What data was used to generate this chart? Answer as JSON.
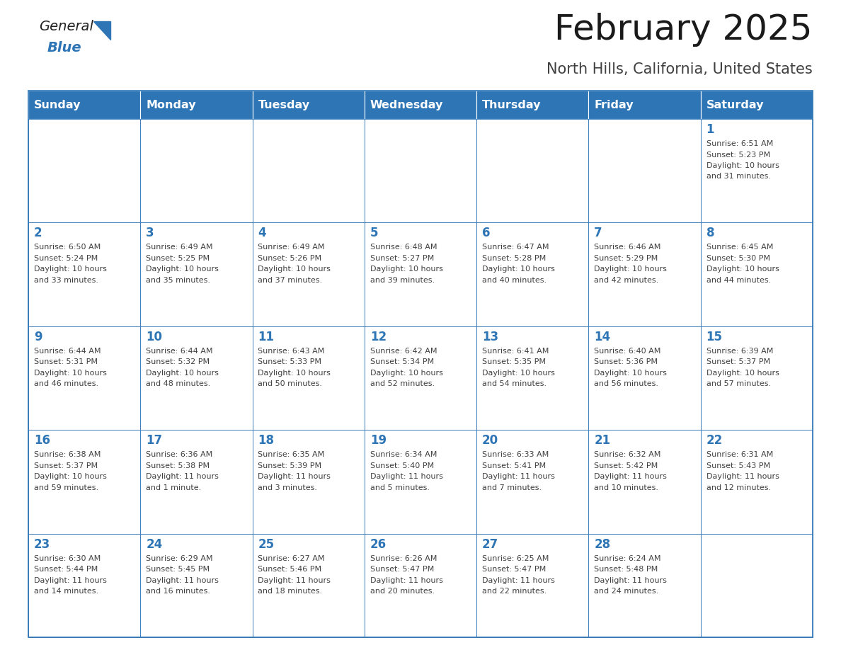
{
  "title": "February 2025",
  "subtitle": "North Hills, California, United States",
  "days_of_week": [
    "Sunday",
    "Monday",
    "Tuesday",
    "Wednesday",
    "Thursday",
    "Friday",
    "Saturday"
  ],
  "header_bg": "#2E75B6",
  "header_text": "#FFFFFF",
  "cell_bg": "#FFFFFF",
  "border_color": "#2E75B6",
  "day_number_color": "#2E75B6",
  "info_text_color": "#404040",
  "title_color": "#1a1a1a",
  "subtitle_color": "#404040",
  "calendar": [
    [
      null,
      null,
      null,
      null,
      null,
      null,
      {
        "day": 1,
        "sunrise": "6:51 AM",
        "sunset": "5:23 PM",
        "daylight_line1": "Daylight: 10 hours",
        "daylight_line2": "and 31 minutes."
      }
    ],
    [
      {
        "day": 2,
        "sunrise": "6:50 AM",
        "sunset": "5:24 PM",
        "daylight_line1": "Daylight: 10 hours",
        "daylight_line2": "and 33 minutes."
      },
      {
        "day": 3,
        "sunrise": "6:49 AM",
        "sunset": "5:25 PM",
        "daylight_line1": "Daylight: 10 hours",
        "daylight_line2": "and 35 minutes."
      },
      {
        "day": 4,
        "sunrise": "6:49 AM",
        "sunset": "5:26 PM",
        "daylight_line1": "Daylight: 10 hours",
        "daylight_line2": "and 37 minutes."
      },
      {
        "day": 5,
        "sunrise": "6:48 AM",
        "sunset": "5:27 PM",
        "daylight_line1": "Daylight: 10 hours",
        "daylight_line2": "and 39 minutes."
      },
      {
        "day": 6,
        "sunrise": "6:47 AM",
        "sunset": "5:28 PM",
        "daylight_line1": "Daylight: 10 hours",
        "daylight_line2": "and 40 minutes."
      },
      {
        "day": 7,
        "sunrise": "6:46 AM",
        "sunset": "5:29 PM",
        "daylight_line1": "Daylight: 10 hours",
        "daylight_line2": "and 42 minutes."
      },
      {
        "day": 8,
        "sunrise": "6:45 AM",
        "sunset": "5:30 PM",
        "daylight_line1": "Daylight: 10 hours",
        "daylight_line2": "and 44 minutes."
      }
    ],
    [
      {
        "day": 9,
        "sunrise": "6:44 AM",
        "sunset": "5:31 PM",
        "daylight_line1": "Daylight: 10 hours",
        "daylight_line2": "and 46 minutes."
      },
      {
        "day": 10,
        "sunrise": "6:44 AM",
        "sunset": "5:32 PM",
        "daylight_line1": "Daylight: 10 hours",
        "daylight_line2": "and 48 minutes."
      },
      {
        "day": 11,
        "sunrise": "6:43 AM",
        "sunset": "5:33 PM",
        "daylight_line1": "Daylight: 10 hours",
        "daylight_line2": "and 50 minutes."
      },
      {
        "day": 12,
        "sunrise": "6:42 AM",
        "sunset": "5:34 PM",
        "daylight_line1": "Daylight: 10 hours",
        "daylight_line2": "and 52 minutes."
      },
      {
        "day": 13,
        "sunrise": "6:41 AM",
        "sunset": "5:35 PM",
        "daylight_line1": "Daylight: 10 hours",
        "daylight_line2": "and 54 minutes."
      },
      {
        "day": 14,
        "sunrise": "6:40 AM",
        "sunset": "5:36 PM",
        "daylight_line1": "Daylight: 10 hours",
        "daylight_line2": "and 56 minutes."
      },
      {
        "day": 15,
        "sunrise": "6:39 AM",
        "sunset": "5:37 PM",
        "daylight_line1": "Daylight: 10 hours",
        "daylight_line2": "and 57 minutes."
      }
    ],
    [
      {
        "day": 16,
        "sunrise": "6:38 AM",
        "sunset": "5:37 PM",
        "daylight_line1": "Daylight: 10 hours",
        "daylight_line2": "and 59 minutes."
      },
      {
        "day": 17,
        "sunrise": "6:36 AM",
        "sunset": "5:38 PM",
        "daylight_line1": "Daylight: 11 hours",
        "daylight_line2": "and 1 minute."
      },
      {
        "day": 18,
        "sunrise": "6:35 AM",
        "sunset": "5:39 PM",
        "daylight_line1": "Daylight: 11 hours",
        "daylight_line2": "and 3 minutes."
      },
      {
        "day": 19,
        "sunrise": "6:34 AM",
        "sunset": "5:40 PM",
        "daylight_line1": "Daylight: 11 hours",
        "daylight_line2": "and 5 minutes."
      },
      {
        "day": 20,
        "sunrise": "6:33 AM",
        "sunset": "5:41 PM",
        "daylight_line1": "Daylight: 11 hours",
        "daylight_line2": "and 7 minutes."
      },
      {
        "day": 21,
        "sunrise": "6:32 AM",
        "sunset": "5:42 PM",
        "daylight_line1": "Daylight: 11 hours",
        "daylight_line2": "and 10 minutes."
      },
      {
        "day": 22,
        "sunrise": "6:31 AM",
        "sunset": "5:43 PM",
        "daylight_line1": "Daylight: 11 hours",
        "daylight_line2": "and 12 minutes."
      }
    ],
    [
      {
        "day": 23,
        "sunrise": "6:30 AM",
        "sunset": "5:44 PM",
        "daylight_line1": "Daylight: 11 hours",
        "daylight_line2": "and 14 minutes."
      },
      {
        "day": 24,
        "sunrise": "6:29 AM",
        "sunset": "5:45 PM",
        "daylight_line1": "Daylight: 11 hours",
        "daylight_line2": "and 16 minutes."
      },
      {
        "day": 25,
        "sunrise": "6:27 AM",
        "sunset": "5:46 PM",
        "daylight_line1": "Daylight: 11 hours",
        "daylight_line2": "and 18 minutes."
      },
      {
        "day": 26,
        "sunrise": "6:26 AM",
        "sunset": "5:47 PM",
        "daylight_line1": "Daylight: 11 hours",
        "daylight_line2": "and 20 minutes."
      },
      {
        "day": 27,
        "sunrise": "6:25 AM",
        "sunset": "5:47 PM",
        "daylight_line1": "Daylight: 11 hours",
        "daylight_line2": "and 22 minutes."
      },
      {
        "day": 28,
        "sunrise": "6:24 AM",
        "sunset": "5:48 PM",
        "daylight_line1": "Daylight: 11 hours",
        "daylight_line2": "and 24 minutes."
      },
      null
    ]
  ]
}
